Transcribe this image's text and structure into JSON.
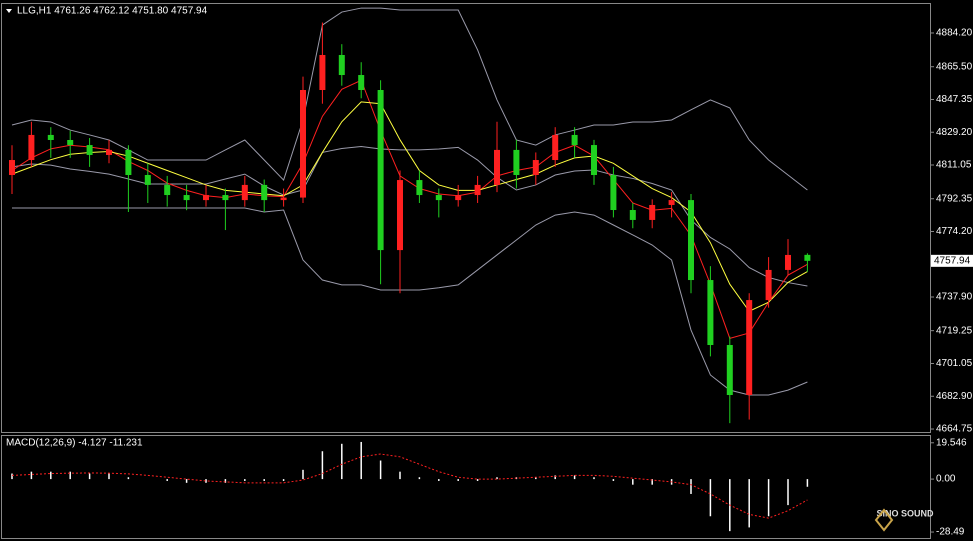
{
  "chart_data": [
    {
      "type": "candlestick",
      "title": "LLG,H1  4761.26 4762.12 4751.80 4757.94",
      "up_color": "#ff2020",
      "down_color": "#20d020",
      "open": [
        4805.5,
        4813.8,
        4827.7,
        4824.9,
        4822.1,
        4816.6,
        4819.4,
        4805.5,
        4800,
        4794.4,
        4791.6,
        4794.4,
        4791.6,
        4800,
        4791.6,
        4793,
        4852.6,
        4872,
        4860.9,
        4852.6,
        4763.9,
        4802.7,
        4794.4,
        4791.6,
        4794.4,
        4800,
        4819.4,
        4805.5,
        4813.8,
        4827.7,
        4822.1,
        4805.5,
        4786.1,
        4780.6,
        4788.9,
        4791.6,
        4747.3,
        4711.3,
        4683.6,
        4736.2,
        4752.9,
        4761.26
      ],
      "high": [
        4822,
        4835,
        4832,
        4830,
        4826,
        4825,
        4822,
        4812,
        4805,
        4800,
        4800,
        4798,
        4805,
        4803,
        4798,
        4860,
        4890,
        4878,
        4868,
        4858,
        4808,
        4808,
        4798,
        4800,
        4805,
        4835,
        4825,
        4818,
        4832,
        4832,
        4825,
        4810,
        4790,
        4792,
        4796,
        4795,
        4755,
        4716,
        4740,
        4760,
        4770,
        4762.12
      ],
      "low": [
        4795,
        4810,
        4815,
        4815,
        4810,
        4812,
        4785,
        4790,
        4788,
        4786,
        4788,
        4775,
        4788,
        4785,
        4788,
        4790,
        4845,
        4855,
        4848,
        4745,
        4740,
        4790,
        4782,
        4788,
        4790,
        4796,
        4798,
        4800,
        4810,
        4815,
        4800,
        4782,
        4776,
        4776,
        4782,
        4740,
        4705,
        4668,
        4670,
        4732,
        4750,
        4751.8
      ],
      "close": [
        4813.8,
        4827.7,
        4824.9,
        4822.1,
        4816.6,
        4819.4,
        4805.5,
        4800,
        4794.4,
        4791.6,
        4794.4,
        4791.6,
        4800,
        4791.6,
        4793,
        4852.6,
        4872,
        4860.9,
        4852.6,
        4763.9,
        4802.7,
        4794.4,
        4791.6,
        4794.4,
        4800,
        4819.4,
        4805.5,
        4813.8,
        4827.7,
        4822.1,
        4805.5,
        4786.1,
        4780.6,
        4788.9,
        4791.6,
        4747.3,
        4711.3,
        4683.6,
        4736.2,
        4752.9,
        4761.2,
        4757.94
      ],
      "lines": [
        {
          "color": "#9a9aaa",
          "values": [
            4833.2,
            4836,
            4834.9,
            4830.4,
            4827.7,
            4824.9,
            4819.4,
            4813.8,
            4813.8,
            4813.8,
            4813.8,
            4819.4,
            4824.9,
            4813.8,
            4802.7,
            4836,
            4888.6,
            4895.8,
            4898,
            4898,
            4896.9,
            4896.9,
            4896.9,
            4896.9,
            4874.8,
            4847.1,
            4824.9,
            4822.1,
            4827.7,
            4830.4,
            4833.2,
            4833.2,
            4834.9,
            4834.9,
            4836,
            4841.6,
            4847.1,
            4842.7,
            4824.9,
            4813.8,
            4805.5,
            4797.2
          ]
        },
        {
          "color": "#9a9aaa",
          "values": [
            4810,
            4811.6,
            4811,
            4808.8,
            4807.5,
            4806,
            4803.3,
            4800.5,
            4800.5,
            4800.5,
            4800.5,
            4803.3,
            4806,
            4799.4,
            4794.4,
            4797.2,
            4818,
            4820.2,
            4821.3,
            4819.9,
            4819.4,
            4819.4,
            4819.9,
            4820.8,
            4813.8,
            4804.2,
            4797.2,
            4800,
            4805.5,
            4807.7,
            4808.3,
            4805.5,
            4803.6,
            4800.8,
            4797.2,
            4780.6,
            4770.9,
            4764.5,
            4754.2,
            4748.7,
            4745.9,
            4744
          ]
        },
        {
          "color": "#9a9aaa",
          "values": [
            4787.2,
            4787.2,
            4787.2,
            4787.2,
            4787.2,
            4787.2,
            4787.2,
            4787.2,
            4787.2,
            4787.2,
            4787.2,
            4787.2,
            4787.2,
            4785,
            4786.1,
            4758.4,
            4747.3,
            4744.6,
            4744.6,
            4741.8,
            4741.8,
            4741.8,
            4743,
            4744.6,
            4752.9,
            4761.2,
            4769.5,
            4777.8,
            4783.3,
            4785,
            4783.3,
            4777.8,
            4772.3,
            4766.7,
            4758.4,
            4719.6,
            4694.7,
            4686.3,
            4683.6,
            4683.6,
            4686.3,
            4690.8
          ]
        },
        {
          "color": "#ff2020",
          "values": [
            4808,
            4815,
            4820,
            4822,
            4821,
            4819.5,
            4813,
            4808,
            4801,
            4797,
            4794,
            4793,
            4795,
            4794,
            4793.5,
            4812,
            4838,
            4853,
            4858,
            4830,
            4805,
            4798,
            4795,
            4794,
            4796,
            4805,
            4808,
            4810,
            4818,
            4822,
            4816,
            4803,
            4790,
            4786,
            4787,
            4772,
            4745,
            4715,
            4718,
            4735,
            4750,
            4756
          ]
        },
        {
          "color": "#ffff40",
          "values": [
            4806,
            4810,
            4814,
            4817,
            4818,
            4818.5,
            4816,
            4812,
            4808,
            4804,
            4800,
            4797,
            4796,
            4795,
            4794,
            4800,
            4818,
            4835,
            4846,
            4845,
            4825,
            4808,
            4800,
            4797,
            4797,
            4800,
            4803,
            4806,
            4811,
            4815,
            4816,
            4812,
            4805,
            4798,
            4793,
            4785,
            4768,
            4745,
            4730,
            4735,
            4746,
            4752
          ]
        }
      ],
      "ylim": [
        4663.1,
        4899.7
      ],
      "yticks": [
        {
          "value": 4884.2,
          "label": "4884.20"
        },
        {
          "value": 4865.5,
          "label": "4865.50"
        },
        {
          "value": 4847.35,
          "label": "4847.35"
        },
        {
          "value": 4829.2,
          "label": "4829.20"
        },
        {
          "value": 4811.05,
          "label": "4811.05"
        },
        {
          "value": 4792.35,
          "label": "4792.35"
        },
        {
          "value": 4774.2,
          "label": "4774.20"
        },
        {
          "value": 4737.9,
          "label": "4737.90"
        },
        {
          "value": 4719.25,
          "label": "4719.25"
        },
        {
          "value": 4701.05,
          "label": "4701.05"
        },
        {
          "value": 4682.9,
          "label": "4682.90"
        },
        {
          "value": 4664.75,
          "label": "4664.75"
        }
      ]
    },
    {
      "type": "macd",
      "title": "MACD(12,26,9) -4.127 -11.231",
      "color": "#ffffff",
      "values": [
        3,
        4,
        4,
        4,
        3,
        3,
        1,
        0,
        -1,
        -2,
        -2,
        -2,
        -1,
        -1,
        -1,
        5,
        15,
        19,
        20,
        10,
        4,
        1,
        -1,
        -1,
        -1,
        1,
        1,
        1,
        2,
        2,
        1,
        -1,
        -3,
        -3,
        -3,
        -8,
        -20,
        -28,
        -26,
        -20,
        -14,
        -4.127
      ],
      "signal": {
        "color": "#ff2020",
        "values": [
          2,
          2.5,
          3,
          3.2,
          3.3,
          3.2,
          2.8,
          2,
          1,
          0,
          -1,
          -1.5,
          -2,
          -2,
          -2,
          -0.5,
          3,
          8,
          12,
          13.5,
          12,
          8,
          4,
          1,
          0,
          0,
          0.5,
          1,
          1.5,
          2,
          2,
          1.5,
          0.5,
          -0.5,
          -1.5,
          -3,
          -8,
          -14,
          -19,
          -21,
          -17,
          -11.231
        ]
      },
      "ylim": [
        -31.7,
        23.2
      ],
      "yticks": [
        19.546,
        {
          "value": 0,
          "label": "0.00"
        },
        -28.49
      ]
    }
  ],
  "watermark": "SiNO SOUND"
}
